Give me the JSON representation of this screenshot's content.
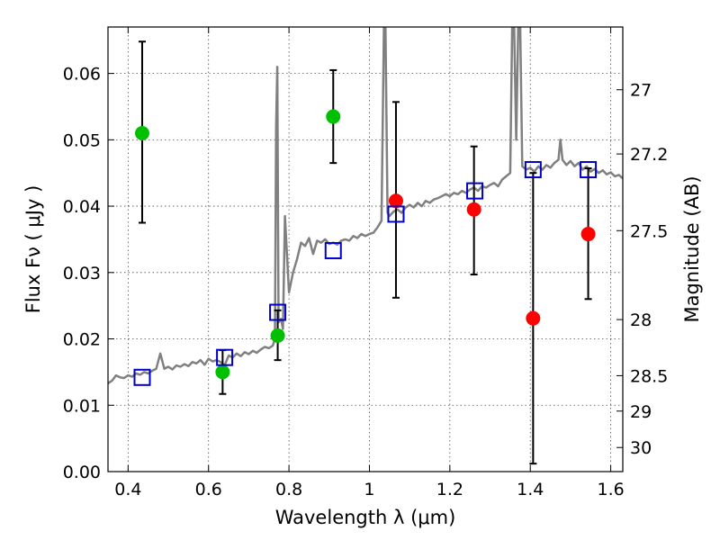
{
  "chart_data": {
    "type": "scatter",
    "xlabel": "Wavelength  λ (μm)",
    "ylabel": "Flux  Fν  ( μJy )",
    "y2label": "Magnitude (AB)",
    "xlim": [
      0.35,
      1.63
    ],
    "ylim": [
      0.0,
      0.067
    ],
    "grid": true,
    "x_ticks": [
      0.4,
      0.6,
      0.8,
      1.0,
      1.2,
      1.4,
      1.6
    ],
    "x_tick_labels": [
      "0.4",
      "0.6",
      "0.8",
      "1",
      "1.2",
      "1.4",
      "1.6"
    ],
    "y_ticks": [
      0.0,
      0.01,
      0.02,
      0.03,
      0.04,
      0.05,
      0.06
    ],
    "y_tick_labels": [
      "0.00",
      "0.01",
      "0.02",
      "0.03",
      "0.04",
      "0.05",
      "0.06"
    ],
    "mag_ticks": [
      27,
      27.2,
      27.5,
      28,
      28.5,
      29,
      30
    ],
    "mag_tick_labels": [
      "27",
      "27.2",
      "27.5",
      "28",
      "28.5",
      "29",
      "30"
    ],
    "colors": {
      "green": "#00c000",
      "red": "#ff0000",
      "squares": "#0000cc",
      "spectrum": "#808080",
      "errorbar": "#000000"
    },
    "green_points": [
      {
        "x": 0.435,
        "y": 0.051,
        "ylo": 0.0375,
        "yhi": 0.0648
      },
      {
        "x": 0.635,
        "y": 0.015,
        "ylo": 0.0117,
        "yhi": 0.0183
      },
      {
        "x": 0.772,
        "y": 0.0205,
        "ylo": 0.0168,
        "yhi": 0.0243
      },
      {
        "x": 0.91,
        "y": 0.0535,
        "ylo": 0.0465,
        "yhi": 0.0605
      }
    ],
    "red_points": [
      {
        "x": 1.066,
        "y": 0.0408,
        "ylo": 0.0262,
        "yhi": 0.0557
      },
      {
        "x": 1.26,
        "y": 0.0395,
        "ylo": 0.0297,
        "yhi": 0.049
      },
      {
        "x": 1.407,
        "y": 0.0231,
        "ylo": 0.0012,
        "yhi": 0.045
      },
      {
        "x": 1.544,
        "y": 0.0358,
        "ylo": 0.026,
        "yhi": 0.0457
      }
    ],
    "model_squares": [
      {
        "x": 0.435,
        "y": 0.0142
      },
      {
        "x": 0.64,
        "y": 0.0172
      },
      {
        "x": 0.772,
        "y": 0.024
      },
      {
        "x": 0.91,
        "y": 0.0333
      },
      {
        "x": 1.066,
        "y": 0.0388
      },
      {
        "x": 1.262,
        "y": 0.0423
      },
      {
        "x": 1.407,
        "y": 0.0455
      },
      {
        "x": 1.544,
        "y": 0.0455
      }
    ],
    "spectrum": {
      "x": [
        0.35,
        0.36,
        0.37,
        0.38,
        0.39,
        0.4,
        0.41,
        0.42,
        0.43,
        0.44,
        0.45,
        0.46,
        0.47,
        0.48,
        0.49,
        0.5,
        0.51,
        0.52,
        0.53,
        0.54,
        0.55,
        0.56,
        0.57,
        0.58,
        0.59,
        0.6,
        0.61,
        0.62,
        0.63,
        0.64,
        0.65,
        0.66,
        0.67,
        0.68,
        0.69,
        0.7,
        0.71,
        0.72,
        0.73,
        0.74,
        0.75,
        0.76,
        0.765,
        0.768,
        0.771,
        0.774,
        0.78,
        0.785,
        0.79,
        0.8,
        0.81,
        0.82,
        0.83,
        0.84,
        0.85,
        0.86,
        0.87,
        0.88,
        0.89,
        0.9,
        0.91,
        0.92,
        0.93,
        0.94,
        0.95,
        0.96,
        0.97,
        0.98,
        0.99,
        1.0,
        1.01,
        1.02,
        1.03,
        1.036,
        1.04,
        1.045,
        1.05,
        1.06,
        1.07,
        1.08,
        1.09,
        1.1,
        1.11,
        1.12,
        1.13,
        1.14,
        1.15,
        1.16,
        1.17,
        1.18,
        1.19,
        1.2,
        1.21,
        1.22,
        1.23,
        1.24,
        1.25,
        1.26,
        1.27,
        1.28,
        1.29,
        1.3,
        1.31,
        1.32,
        1.33,
        1.34,
        1.35,
        1.355,
        1.36,
        1.365,
        1.37,
        1.375,
        1.38,
        1.39,
        1.4,
        1.41,
        1.42,
        1.43,
        1.44,
        1.45,
        1.46,
        1.47,
        1.475,
        1.48,
        1.49,
        1.5,
        1.51,
        1.52,
        1.53,
        1.54,
        1.55,
        1.56,
        1.57,
        1.58,
        1.59,
        1.6,
        1.61,
        1.62,
        1.63
      ],
      "y": [
        0.0133,
        0.0137,
        0.0145,
        0.0142,
        0.0141,
        0.0145,
        0.0143,
        0.0148,
        0.0146,
        0.015,
        0.0148,
        0.0152,
        0.0155,
        0.0178,
        0.0155,
        0.0158,
        0.0154,
        0.016,
        0.0158,
        0.0162,
        0.0159,
        0.0165,
        0.0163,
        0.0168,
        0.0161,
        0.017,
        0.0166,
        0.0168,
        0.0165,
        0.016,
        0.0175,
        0.0172,
        0.0178,
        0.0174,
        0.018,
        0.0177,
        0.0182,
        0.0179,
        0.0184,
        0.0188,
        0.0186,
        0.019,
        0.02,
        0.052,
        0.061,
        0.0225,
        0.023,
        0.0215,
        0.0385,
        0.027,
        0.03,
        0.032,
        0.0345,
        0.034,
        0.0352,
        0.0328,
        0.0348,
        0.0345,
        0.035,
        0.0343,
        0.0345,
        0.0342,
        0.0348,
        0.035,
        0.0348,
        0.0355,
        0.0352,
        0.0358,
        0.0355,
        0.0358,
        0.036,
        0.0368,
        0.0378,
        0.067,
        0.067,
        0.039,
        0.0385,
        0.0392,
        0.0395,
        0.039,
        0.0398,
        0.0402,
        0.0398,
        0.0405,
        0.04,
        0.0408,
        0.0405,
        0.041,
        0.0412,
        0.0415,
        0.0418,
        0.0415,
        0.042,
        0.0418,
        0.0423,
        0.042,
        0.0425,
        0.0428,
        0.0423,
        0.043,
        0.0428,
        0.0432,
        0.0435,
        0.043,
        0.044,
        0.0445,
        0.045,
        0.067,
        0.067,
        0.05,
        0.067,
        0.067,
        0.046,
        0.0455,
        0.0458,
        0.0452,
        0.046,
        0.0455,
        0.0462,
        0.0458,
        0.0465,
        0.047,
        0.05,
        0.047,
        0.0462,
        0.0468,
        0.046,
        0.0465,
        0.0455,
        0.046,
        0.0452,
        0.0456,
        0.045,
        0.0454,
        0.0448,
        0.0451,
        0.0445,
        0.0447,
        0.0442
      ]
    }
  }
}
